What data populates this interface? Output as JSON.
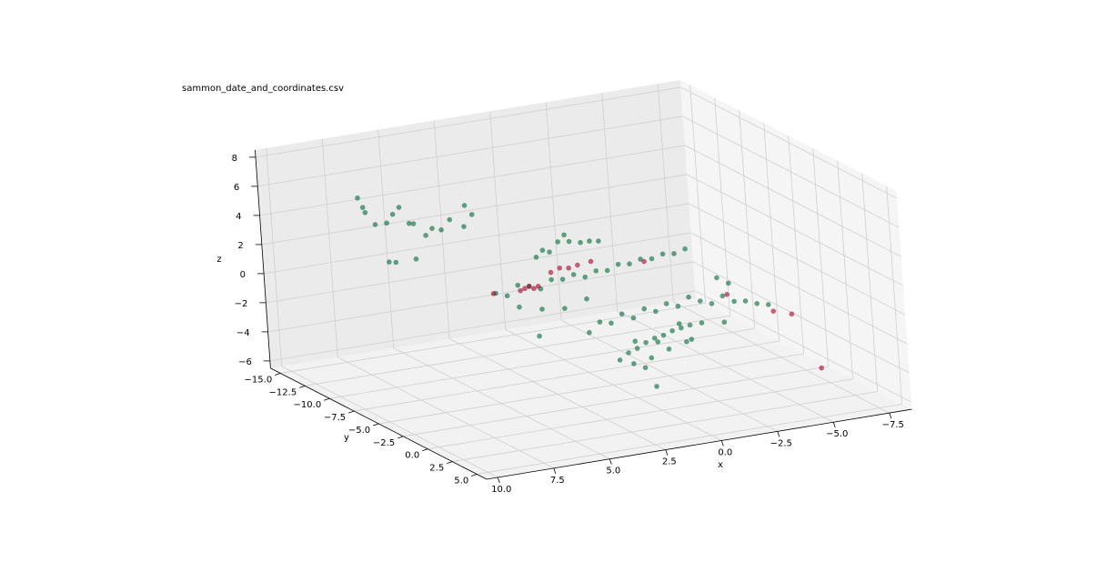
{
  "chart_data": {
    "type": "scatter3d",
    "title": "sammon_date_and_coordinates.csv",
    "x_label": "x",
    "y_label": "y",
    "z_label": "z",
    "xlim": [
      -8.5,
      10.5
    ],
    "ylim": [
      -16,
      6
    ],
    "zlim": [
      -6.5,
      8.5
    ],
    "xticks": [
      {
        "value": -7.5,
        "label": "−7.5"
      },
      {
        "value": -5,
        "label": "−5.0"
      },
      {
        "value": -2.5,
        "label": "−2.5"
      },
      {
        "value": 0,
        "label": "0.0"
      },
      2.5,
      {
        "value": 5,
        "label": "5.0"
      },
      7.5,
      {
        "value": 10,
        "label": "10.0"
      }
    ],
    "yticks": [
      {
        "value": -15,
        "label": "−15.0"
      },
      {
        "value": -12.5,
        "label": "−12.5"
      },
      {
        "value": -10,
        "label": "−10.0"
      },
      {
        "value": -7.5,
        "label": "−7.5"
      },
      {
        "value": -5,
        "label": "−5.0"
      },
      {
        "value": -2.5,
        "label": "−2.5"
      },
      {
        "value": 0,
        "label": "0.0"
      },
      2.5,
      {
        "value": 5,
        "label": "5.0"
      }
    ],
    "zticks": [
      {
        "value": -6,
        "label": "−6"
      },
      {
        "value": -4,
        "label": "−4"
      },
      {
        "value": -2,
        "label": "−2"
      },
      0,
      2,
      4,
      6,
      8
    ],
    "grid": true,
    "series": [
      {
        "color": "#006837",
        "x": [
          7.8,
          7.6,
          7.3,
          7.1,
          6.8,
          6.3,
          6.0,
          5.6,
          5.2,
          4.9,
          4.6,
          4.2,
          3.8,
          3.4,
          3.1,
          2.8,
          6.6,
          6.3,
          5.4,
          2.6,
          2.3,
          2.0,
          1.6,
          1.3,
          1.1,
          0.6,
          0.2,
          -0.2,
          4.5,
          4.0,
          3.5,
          3.0,
          2.5,
          2.0,
          1.5,
          1.0,
          0.5,
          0.0,
          -0.5,
          -1.0,
          -1.5,
          -2.0,
          -2.5,
          -3.0,
          -3.5,
          -4.0,
          3.5,
          2.5,
          1.5,
          0.5,
          2.7,
          3.0,
          2.5,
          2.0,
          1.5,
          1.0,
          0.5,
          0.0,
          -0.5,
          -1.0,
          -1.5,
          -2.0,
          -2.5,
          -3.0,
          -3.5,
          -4.0,
          -4.5,
          -5.0,
          -1.0,
          -2.0,
          -3.0,
          1.0,
          0.0,
          -1.5,
          -3.3,
          -2.8,
          3.4,
          3.0,
          2.6,
          2.2,
          1.8,
          1.4,
          1.0,
          0.6,
          0.2,
          2.8,
          2.0,
          1.2,
          0.4,
          1.86,
          2.3
        ],
        "y": [
          -12,
          -12,
          -12.5,
          -12,
          -11.5,
          -12,
          -12,
          -12,
          -12.5,
          -12,
          -12,
          -12,
          -12,
          -11.5,
          -12,
          -12,
          -12,
          -12,
          -12,
          -6,
          -6,
          -6,
          -6,
          -6,
          -6,
          -6,
          -6,
          -6,
          -6,
          -6,
          -6,
          -6,
          -6,
          -6,
          -6,
          -6,
          -6,
          -6,
          -6,
          -6,
          -6,
          -6,
          -6,
          -6,
          -6,
          -6,
          -6,
          -6,
          -6,
          -6,
          -6,
          0,
          0,
          0,
          0,
          0,
          0,
          0,
          0,
          0,
          0,
          0,
          0,
          0,
          0,
          0,
          0,
          0,
          0,
          0,
          0,
          0,
          0,
          0,
          0,
          0,
          4,
          4,
          4,
          4,
          4,
          4,
          4,
          4,
          4,
          4,
          4,
          4,
          4,
          4,
          4
        ],
        "z": [
          5.9,
          5.2,
          4.6,
          3.9,
          4.1,
          4.4,
          4.8,
          3.6,
          3.3,
          2.6,
          3.0,
          2.8,
          3.4,
          3.0,
          4.2,
          3.5,
          1.2,
          1.1,
          1.1,
          2.6,
          3.0,
          2.8,
          3.4,
          3.8,
          3.3,
          3.1,
          3.1,
          3.0,
          0.6,
          0.3,
          0.9,
          0.7,
          0.4,
          0.9,
          0.8,
          1.0,
          0.7,
          1.0,
          0.9,
          1.2,
          1.1,
          1.3,
          1.2,
          1.4,
          1.3,
          1.5,
          -0.6,
          -1.0,
          -1.2,
          -0.8,
          -2.8,
          -0.4,
          0.2,
          0.0,
          0.5,
          0.1,
          0.6,
          0.3,
          0.7,
          0.4,
          0.9,
          0.5,
          0.2,
          0.6,
          0.1,
          0.0,
          -0.3,
          -0.5,
          -0.8,
          -1.0,
          -1.2,
          -1.5,
          -1.8,
          -2.0,
          1.4,
          1.9,
          -0.8,
          -0.4,
          -0.2,
          0.1,
          0.3,
          0.4,
          0.6,
          0.7,
          0.8,
          -1.2,
          -1.0,
          -0.6,
          -0.3,
          -3.0,
          -1.6
        ]
      },
      {
        "color": "#a50026",
        "x": [
          3.4,
          3.2,
          3.0,
          2.8,
          2.6,
          4.6,
          2.0,
          1.6,
          1.2,
          0.8,
          0.2,
          -2.15,
          -3.2,
          -5.2,
          -6.0,
          -7.15
        ],
        "y": [
          -6,
          -6,
          -6,
          -6,
          -6,
          -6,
          -6,
          -6,
          -6,
          -6,
          -6,
          -6,
          0,
          0,
          0,
          0
        ],
        "z": [
          0.5,
          0.6,
          0.7,
          0.5,
          0.6,
          0.6,
          1.4,
          1.6,
          1.5,
          1.6,
          1.7,
          1.1,
          0.65,
          -1.0,
          -1.4,
          -5.4
        ]
      }
    ]
  }
}
